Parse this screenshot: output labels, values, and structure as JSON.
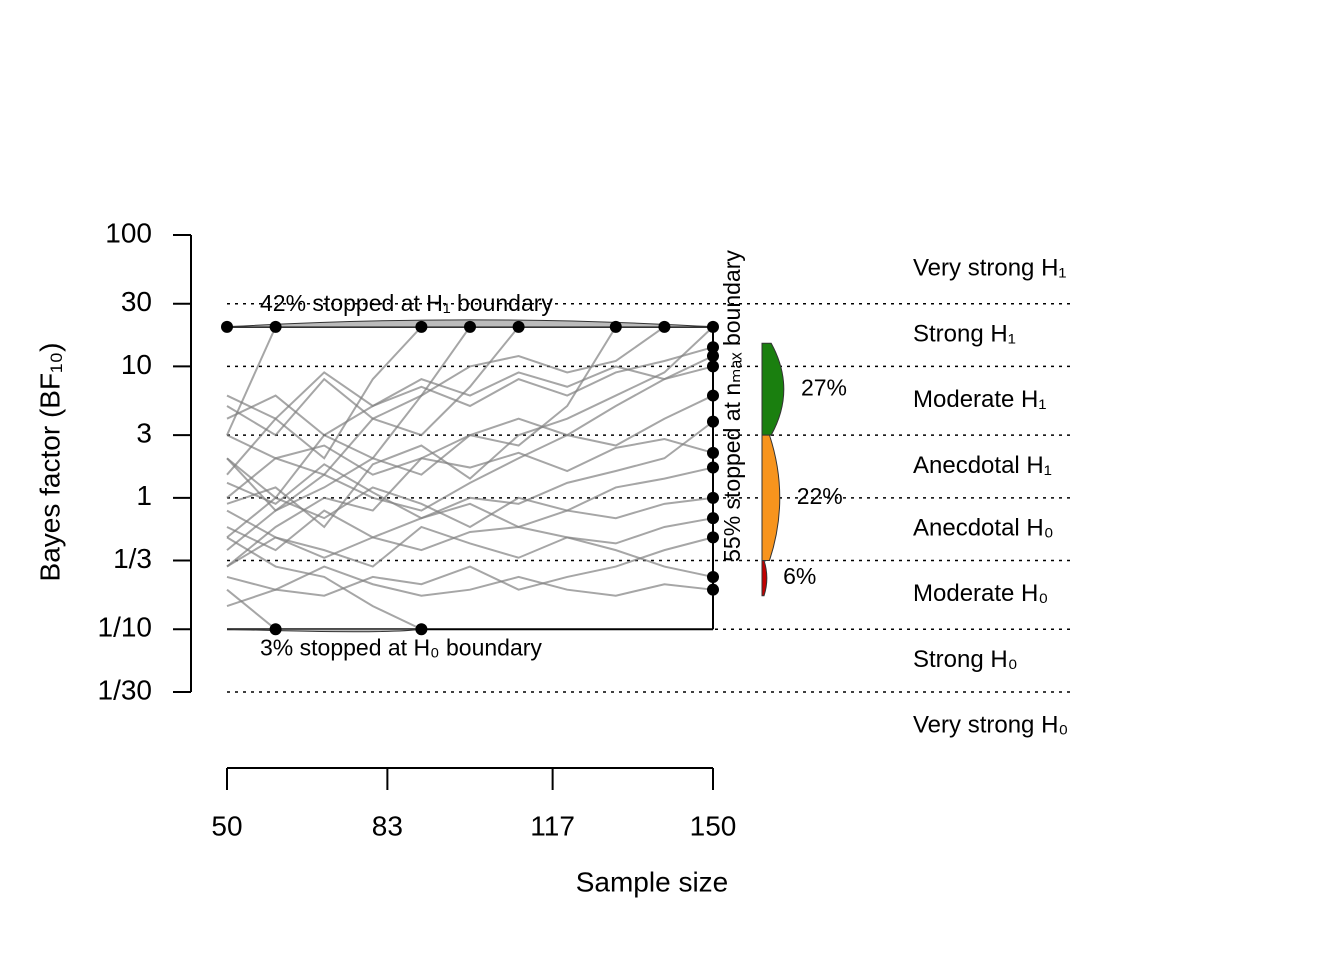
{
  "chart_data": {
    "type": "line",
    "y_label": "Bayes factor (BF₁₀)",
    "x_label": "Sample size",
    "log_y": true,
    "grid": true,
    "xlim": [
      50,
      150
    ],
    "xticks": [
      50,
      83,
      117,
      150
    ],
    "ylim": [
      0.0333,
      100
    ],
    "yticks": [
      100,
      30,
      10,
      3,
      1,
      {
        "value": 0.3333,
        "label": "1/3"
      },
      {
        "value": 0.1,
        "label": "1/10"
      },
      {
        "value": 0.0333,
        "label": "1/30"
      }
    ],
    "upper_boundary": 20,
    "lower_boundary": 0.1,
    "line_color": "#808080",
    "point_color": "#000000",
    "x": [
      50,
      60,
      70,
      80,
      90,
      100,
      110,
      120,
      130,
      140,
      150
    ],
    "series": [
      {
        "values": [
          20,
          null,
          null,
          null,
          null,
          null,
          null,
          null,
          null,
          null,
          null
        ]
      },
      {
        "values": [
          3,
          20,
          null,
          null,
          null,
          null,
          null,
          null,
          null,
          null,
          null
        ]
      },
      {
        "values": [
          1.5,
          4,
          2,
          8,
          20,
          null,
          null,
          null,
          null,
          null,
          null
        ]
      },
      {
        "values": [
          0.5,
          1,
          3,
          2,
          6,
          20,
          null,
          null,
          null,
          null,
          null
        ]
      },
      {
        "values": [
          2,
          0.8,
          1.5,
          4,
          3,
          7,
          20,
          null,
          null,
          null,
          null
        ]
      },
      {
        "values": [
          0.3,
          0.6,
          1,
          0.8,
          2,
          3,
          2.5,
          5,
          20,
          null,
          null
        ]
      },
      {
        "values": [
          5,
          3,
          8,
          4,
          6,
          10,
          12,
          9,
          11,
          20,
          null
        ]
      },
      {
        "values": [
          0.9,
          1.2,
          0.6,
          1.8,
          2.5,
          1.4,
          3,
          4,
          6,
          9,
          20
        ]
      },
      {
        "values": [
          0.2,
          0.1,
          null,
          null,
          null,
          null,
          null,
          null,
          null,
          null,
          null
        ]
      },
      {
        "values": [
          0.5,
          0.3,
          0.25,
          0.15,
          0.1,
          null,
          null,
          null,
          null,
          null,
          null
        ]
      },
      {
        "values": [
          6,
          4,
          9,
          5,
          7,
          5,
          8,
          6,
          9,
          11,
          14
        ]
      },
      {
        "values": [
          0.4,
          0.8,
          1.2,
          2,
          1.5,
          3,
          4,
          3,
          5,
          8,
          12
        ]
      },
      {
        "values": [
          1,
          2,
          1.5,
          1,
          0.8,
          1.3,
          2,
          3,
          2.5,
          4,
          6
        ]
      },
      {
        "values": [
          0.6,
          0.4,
          0.8,
          0.5,
          0.7,
          1,
          0.9,
          1.3,
          1.6,
          2,
          3.8
        ]
      },
      {
        "values": [
          0.15,
          0.2,
          0.18,
          0.25,
          0.22,
          0.3,
          0.2,
          0.25,
          0.3,
          0.4,
          0.5
        ]
      },
      {
        "values": [
          2,
          1,
          0.7,
          1.2,
          0.9,
          0.6,
          1,
          0.8,
          0.7,
          0.9,
          1
        ]
      },
      {
        "values": [
          0.3,
          0.5,
          0.4,
          0.3,
          0.6,
          0.45,
          0.35,
          0.5,
          0.4,
          0.3,
          0.25
        ]
      },
      {
        "values": [
          1.3,
          0.9,
          1.8,
          1.1,
          0.7,
          0.9,
          0.6,
          0.8,
          1.2,
          1.4,
          1.7
        ]
      },
      {
        "values": [
          0.25,
          0.2,
          0.3,
          0.22,
          0.18,
          0.2,
          0.25,
          0.2,
          0.18,
          0.22,
          0.2
        ]
      },
      {
        "values": [
          4,
          6,
          3,
          5,
          8,
          6,
          9,
          7,
          10,
          8,
          10
        ]
      },
      {
        "values": [
          0.8,
          0.5,
          0.35,
          0.5,
          0.4,
          0.55,
          0.6,
          0.5,
          0.45,
          0.6,
          0.7
        ]
      },
      {
        "values": [
          3,
          2,
          2.5,
          1.5,
          2,
          1.7,
          2.2,
          1.6,
          2.4,
          2.8,
          2.2
        ]
      }
    ],
    "annotations": {
      "upper": "42% stopped at H₁ boundary",
      "lower": "3% stopped at H₀ boundary",
      "nmax": "55% stopped at nₘₐₓ boundary"
    },
    "density": {
      "values": [
        27,
        22,
        6
      ],
      "value_labels": [
        "27%",
        "22%",
        "6%"
      ],
      "from": [
        3,
        0.3333,
        0.18
      ],
      "to": [
        15,
        3,
        0.3333
      ],
      "colors": [
        "#1a7f0f",
        "#f7941d",
        "#c00000"
      ]
    },
    "evidence_labels": [
      "Very strong H₁",
      "Strong H₁",
      "Moderate H₁",
      "Anecdotal H₁",
      "Anecdotal H₀",
      "Moderate H₀",
      "Strong H₀",
      "Very strong H₀"
    ]
  }
}
